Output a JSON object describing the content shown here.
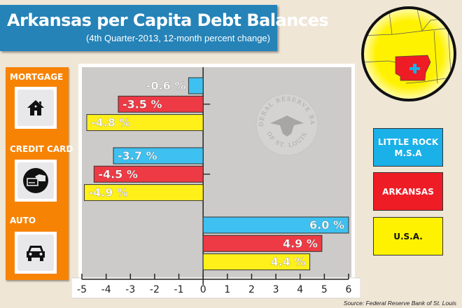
{
  "header": {
    "title": "Arkansas per Capita Debt Balances",
    "subtitle": "(4th Quarter-2013, 12-month percent change)"
  },
  "categories_panel": [
    {
      "label": "MORTGAGE",
      "icon": "house-icon"
    },
    {
      "label": "CREDIT CARD",
      "icon": "credit-card-icon"
    },
    {
      "label": "AUTO",
      "icon": "car-icon"
    }
  ],
  "legend": [
    {
      "label": "LITTLE ROCK M.S.A",
      "color": "#1ab0e8",
      "text_color": "#ffffff"
    },
    {
      "label": "ARKANSAS",
      "color": "#ee1c25",
      "text_color": "#ffffff"
    },
    {
      "label": "U.S.A.",
      "color": "#fff200",
      "text_color": "#111111"
    }
  ],
  "watermark": {
    "top": "FEDERAL RESERVE BANK",
    "bottom": "OF ST. LOUIS"
  },
  "source": "Source: Federal Reserve Bank of St. Louis",
  "chart_data": {
    "type": "bar",
    "orientation": "horizontal",
    "categories": [
      "MORTGAGE",
      "CREDIT CARD",
      "AUTO"
    ],
    "series": [
      {
        "name": "LITTLE ROCK M.S.A",
        "color": "#3ec0f0",
        "values": [
          -0.6,
          -3.7,
          6.0
        ],
        "labels": [
          "-0.6 %",
          "-3.7 %",
          "6.0 %"
        ]
      },
      {
        "name": "ARKANSAS",
        "color": "#ee3a44",
        "values": [
          -3.5,
          -4.5,
          4.9
        ],
        "labels": [
          "-3.5 %",
          "-4.5 %",
          "4.9 %"
        ]
      },
      {
        "name": "U.S.A.",
        "color": "#fff01a",
        "values": [
          -4.8,
          -4.9,
          4.4
        ],
        "labels": [
          "-4.8 %",
          "-4.9 %",
          "4.4 %"
        ]
      }
    ],
    "xlim": [
      -5,
      6
    ],
    "xticks": [
      "-5",
      "-4",
      "-3",
      "-2",
      "-1",
      "0",
      "1",
      "2",
      "3",
      "4",
      "5",
      "6"
    ],
    "grid": false,
    "legend_position": "right"
  }
}
